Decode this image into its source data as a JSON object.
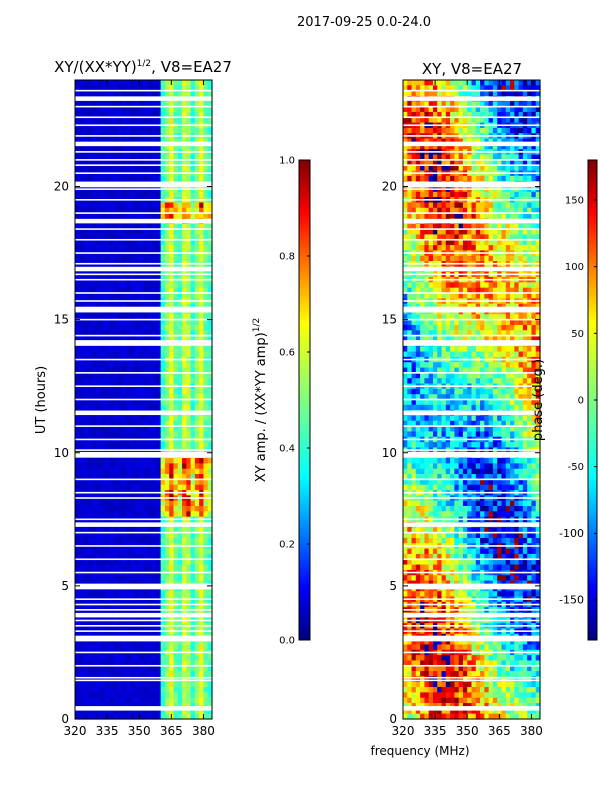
{
  "suptitle": "2017-09-25 0.0-24.0",
  "colors": {
    "jet": [
      "#00007f",
      "#0000ff",
      "#007fff",
      "#00ffff",
      "#7fff7f",
      "#ffff00",
      "#ff7f00",
      "#ff0000",
      "#7f0000"
    ]
  },
  "chart_data": [
    {
      "type": "heatmap",
      "title": "XY/(XX*YY)",
      "title_sup": "1/2",
      "title_suffix": ", V8=EA27",
      "xlabel": "",
      "ylabel": "UT (hours)",
      "xlim": [
        320,
        384
      ],
      "ylim": [
        0,
        24
      ],
      "xticks": [
        "320",
        "335",
        "350",
        "365",
        "380"
      ],
      "xtick_values": [
        320,
        335,
        350,
        365,
        380
      ],
      "yticks": [
        "0",
        "5",
        "10",
        "15",
        "20"
      ],
      "ytick_values": [
        0,
        5,
        10,
        15,
        20
      ],
      "background_value": 0.05,
      "bright_band_mhz": [
        360,
        382
      ],
      "bright_band_value": 0.45
    },
    {
      "type": "colorbar",
      "label": "XY amp. / (XX*YY amp)",
      "label_sup": "1/2",
      "range": [
        0.0,
        1.0
      ],
      "ticks": [
        "0.0",
        "0.2",
        "0.4",
        "0.6",
        "0.8",
        "1.0"
      ],
      "tick_values": [
        0.0,
        0.2,
        0.4,
        0.6,
        0.8,
        1.0
      ]
    },
    {
      "type": "heatmap",
      "title": "XY, V8=EA27",
      "xlabel": "frequency (MHz)",
      "ylabel": "",
      "xlim": [
        320,
        384
      ],
      "ylim": [
        0,
        24
      ],
      "xticks": [
        "320",
        "335",
        "350",
        "365",
        "380"
      ],
      "xtick_values": [
        320,
        335,
        350,
        365,
        380
      ],
      "yticks": [
        "0",
        "5",
        "10",
        "15",
        "20"
      ],
      "ytick_values": [
        0,
        5,
        10,
        15,
        20
      ],
      "value_range_deg": [
        -180,
        180
      ]
    },
    {
      "type": "colorbar",
      "label": "phase (deg.)",
      "range": [
        -180,
        180
      ],
      "ticks": [
        "-150",
        "-100",
        "-50",
        "0",
        "50",
        "100",
        "150"
      ],
      "tick_values": [
        -150,
        -100,
        -50,
        0,
        50,
        100,
        150
      ]
    }
  ],
  "flagged_gaps_hours": [
    0.4,
    1.45,
    1.55,
    2.0,
    2.5,
    3.0,
    3.1,
    3.3,
    3.5,
    3.7,
    3.9,
    4.1,
    4.3,
    4.5,
    4.9,
    5.0,
    5.5,
    6.0,
    6.5,
    7.0,
    7.3,
    7.5,
    8.3,
    8.5,
    9.0,
    9.9,
    10.0,
    10.1,
    10.5,
    11.0,
    11.5,
    12.0,
    12.5,
    13.0,
    13.5,
    14.1,
    14.2,
    14.4,
    15.0,
    15.3,
    15.4,
    15.7,
    16.0,
    16.5,
    16.7,
    16.9,
    17.1,
    17.5,
    18.0,
    18.4,
    18.7,
    19.0,
    19.5,
    19.9,
    20.0,
    20.1,
    20.5,
    20.8,
    21.0,
    21.3,
    21.6,
    21.9,
    22.3,
    22.6,
    23.0,
    23.3,
    23.6
  ]
}
